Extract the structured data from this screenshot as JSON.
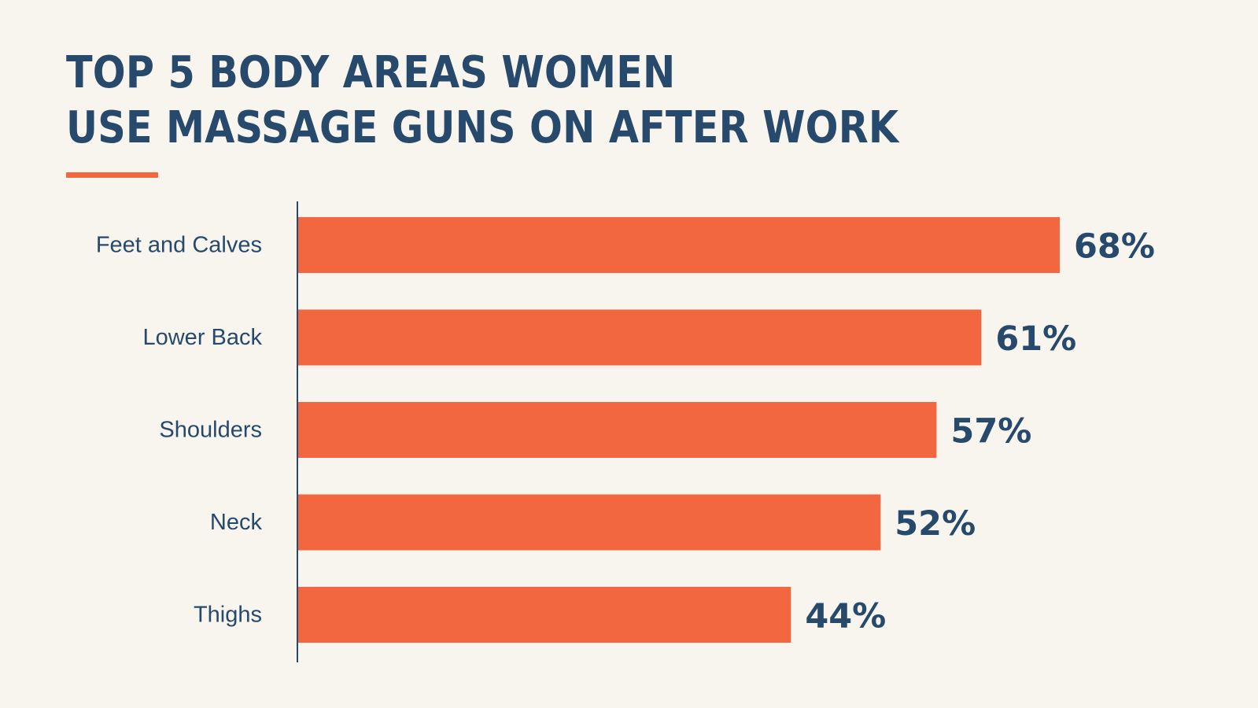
{
  "title_lines": [
    "TOP 5 BODY AREAS WOMEN",
    "USE MASSAGE GUNS ON AFTER WORK"
  ],
  "colors": {
    "background": "#f8f5ef",
    "bar": "#f26640",
    "text": "#27496b",
    "axis": "#27496b"
  },
  "chart_data": {
    "type": "bar",
    "orientation": "horizontal",
    "title": "TOP 5 BODY AREAS WOMEN USE MASSAGE GUNS ON AFTER WORK",
    "categories": [
      "Feet and Calves",
      "Lower Back",
      "Shoulders",
      "Neck",
      "Thighs"
    ],
    "values": [
      68,
      61,
      57,
      52,
      44
    ],
    "value_labels": [
      "68%",
      "61%",
      "57%",
      "52%",
      "44%"
    ],
    "unit": "%",
    "xlabel": "",
    "ylabel": "",
    "grid": false,
    "legend": "none",
    "xlim": [
      0,
      68
    ]
  }
}
